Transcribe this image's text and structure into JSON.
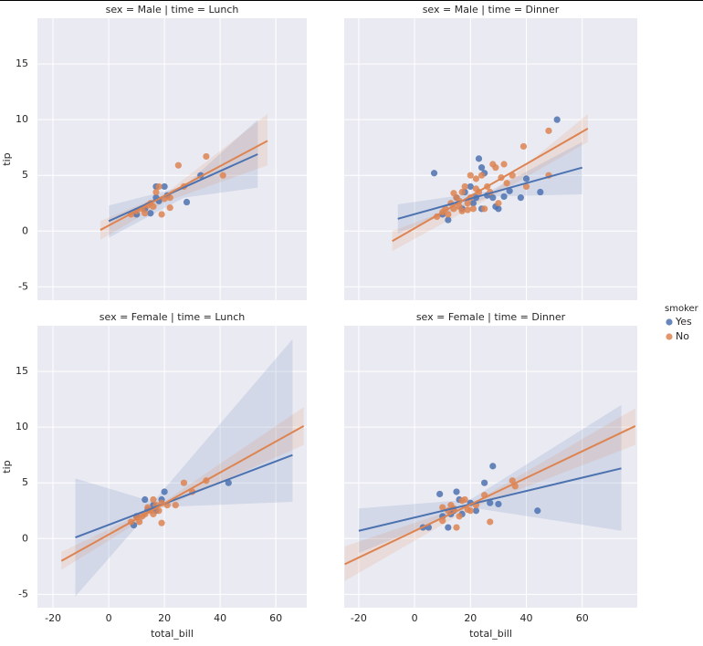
{
  "chart_data": [
    {
      "type": "scatter",
      "title": "sex = Male | time = Lunch",
      "y_label": "tip",
      "xlim": [
        -25.6,
        71.1
      ],
      "ylim": [
        -6.2,
        19.1
      ],
      "xticks": [
        -20,
        0,
        20,
        40,
        60
      ],
      "yticks": [
        -5,
        0,
        5,
        10,
        15
      ],
      "grid": true,
      "series": [
        {
          "name": "Yes",
          "color": "#4c72b0",
          "x": [
            17,
            20,
            17,
            15,
            28,
            33,
            18,
            21,
            10,
            13
          ],
          "values": [
            4,
            4,
            3,
            1.6,
            2.6,
            5,
            2.7,
            3.2,
            1.5,
            2
          ],
          "fit": {
            "x": [
              0,
              53.5
            ],
            "values": [
              0.9,
              6.9
            ]
          },
          "band": {
            "x": [
              0,
              27,
              53.5
            ],
            "lower": [
              -0.6,
              3.0,
              3.9
            ],
            "upper": [
              2.3,
              4.0,
              10
            ]
          }
        },
        {
          "name": "No",
          "color": "#dd8452",
          "x": [
            8,
            10,
            12,
            14,
            15,
            16,
            17,
            19,
            20,
            22,
            22,
            25,
            27,
            35,
            41,
            13,
            18
          ],
          "values": [
            1.5,
            1.8,
            2,
            2.3,
            2.5,
            2.2,
            3.5,
            1.5,
            2.9,
            3,
            2.1,
            5.9,
            4,
            6.7,
            5,
            1.6,
            4
          ],
          "fit": {
            "x": [
              -3,
              57
            ],
            "values": [
              0.1,
              8.1
            ]
          },
          "band": {
            "x": [
              -3,
              20,
              57
            ],
            "lower": [
              -0.8,
              2.6,
              5.9
            ],
            "upper": [
              0.9,
              3.3,
              10.5
            ]
          }
        }
      ]
    },
    {
      "type": "scatter",
      "title": "sex = Male | time = Dinner",
      "xlim": [
        -25.2,
        79.7
      ],
      "ylim": [
        -6.2,
        19.1
      ],
      "xticks": [
        -20,
        0,
        20,
        40,
        60
      ],
      "yticks": [
        -5,
        0,
        5,
        10,
        15
      ],
      "grid": true,
      "series": [
        {
          "name": "Yes",
          "color": "#4c72b0",
          "x": [
            7,
            12,
            15,
            17,
            18,
            20,
            21,
            22,
            23,
            24,
            25,
            26,
            28,
            29,
            30,
            32,
            34,
            38,
            40,
            45,
            51,
            24,
            10
          ],
          "values": [
            5.2,
            1,
            3,
            2,
            3.5,
            4,
            2.5,
            3,
            6.5,
            5.7,
            5.2,
            3.2,
            3,
            2.2,
            2,
            3.1,
            3.6,
            3,
            4.7,
            3.5,
            10,
            2,
            1.5
          ],
          "fit": {
            "x": [
              -6,
              60
            ],
            "values": [
              1.1,
              5.7
            ]
          },
          "band": {
            "x": [
              -6,
              27,
              60
            ],
            "lower": [
              -0.2,
              3.1,
              3.3
            ],
            "upper": [
              2.4,
              3.6,
              8.0
            ]
          }
        },
        {
          "name": "No",
          "color": "#dd8452",
          "x": [
            8,
            10,
            11,
            12,
            13,
            14,
            15,
            16,
            17,
            17,
            18,
            19,
            20,
            20,
            21,
            22,
            23,
            24,
            25,
            26,
            27,
            28,
            29,
            30,
            31,
            32,
            33,
            35,
            39,
            40,
            48,
            48,
            14,
            16,
            19,
            22
          ],
          "values": [
            1.3,
            1.7,
            2,
            1.5,
            2.5,
            2,
            3,
            2.2,
            3.5,
            1.8,
            4,
            2.5,
            3,
            5,
            2,
            4.7,
            3.5,
            5,
            2,
            4,
            3.5,
            6,
            5.7,
            2.5,
            4.8,
            6,
            4.3,
            5,
            7.6,
            4,
            9,
            5,
            3.4,
            2.7,
            1.9,
            3.8
          ],
          "fit": {
            "x": [
              -8,
              62
            ],
            "values": [
              -0.9,
              9.2
            ]
          },
          "band": {
            "x": [
              -8,
              27,
              62
            ],
            "lower": [
              -1.8,
              3.0,
              8.0
            ],
            "upper": [
              0,
              3.3,
              10.5
            ]
          }
        }
      ]
    },
    {
      "type": "scatter",
      "title": "sex = Female | time = Lunch",
      "y_label": "tip",
      "x_label": "total_bill",
      "xlim": [
        -25.6,
        71.1
      ],
      "ylim": [
        -6.2,
        19.1
      ],
      "xticks": [
        -20,
        0,
        20,
        40,
        60
      ],
      "yticks": [
        -5,
        0,
        5,
        10,
        15
      ],
      "grid": true,
      "series": [
        {
          "name": "Yes",
          "color": "#4c72b0",
          "x": [
            9,
            10,
            13,
            14,
            16,
            17,
            19,
            20,
            43
          ],
          "values": [
            1.2,
            2,
            3.5,
            2.6,
            3,
            2.5,
            3.5,
            4.2,
            5
          ],
          "fit": {
            "x": [
              -12,
              66
            ],
            "values": [
              0.1,
              7.5
            ]
          },
          "band": {
            "x": [
              -12,
              16,
              66
            ],
            "lower": [
              -5.2,
              2.8,
              3.3
            ],
            "upper": [
              5.4,
              3.3,
              17.9
            ]
          }
        },
        {
          "name": "No",
          "color": "#dd8452",
          "x": [
            8,
            10,
            11,
            12,
            13,
            14,
            15,
            16,
            17,
            18,
            19,
            21,
            24,
            27,
            30,
            35,
            16,
            19
          ],
          "values": [
            1.5,
            1.9,
            1.5,
            2,
            2.2,
            2.8,
            2.5,
            3.5,
            3,
            2.5,
            1.4,
            3,
            3,
            5,
            4.2,
            5.2,
            2.2,
            3.2
          ],
          "fit": {
            "x": [
              -17,
              70
            ],
            "values": [
              -2,
              10.1
            ]
          },
          "band": {
            "x": [
              -17,
              18,
              70
            ],
            "lower": [
              -2.8,
              2.6,
              8.4
            ],
            "upper": [
              -1.2,
              3.0,
              11.8
            ]
          }
        }
      ]
    },
    {
      "type": "scatter",
      "title": "sex = Female | time = Dinner",
      "x_label": "total_bill",
      "xlim": [
        -25.2,
        79.7
      ],
      "ylim": [
        -6.2,
        19.1
      ],
      "xticks": [
        -20,
        0,
        20,
        40,
        60
      ],
      "yticks": [
        -5,
        0,
        5,
        10,
        15
      ],
      "grid": true,
      "series": [
        {
          "name": "Yes",
          "color": "#4c72b0",
          "x": [
            3,
            5,
            9,
            10,
            12,
            13,
            14,
            15,
            16,
            17,
            20,
            22,
            25,
            27,
            28,
            30,
            44
          ],
          "values": [
            1,
            1,
            4,
            2,
            1,
            2.2,
            2.5,
            4.2,
            3.5,
            2.2,
            3.2,
            2.5,
            5,
            3.2,
            6.5,
            3.1,
            2.5
          ],
          "fit": {
            "x": [
              -20,
              74
            ],
            "values": [
              0.7,
              6.3
            ]
          },
          "band": {
            "x": [
              -20,
              20,
              74
            ],
            "lower": [
              -1.3,
              2.8,
              0.7
            ],
            "upper": [
              2.7,
              3.5,
              12
            ]
          }
        },
        {
          "name": "No",
          "color": "#dd8452",
          "x": [
            10,
            12,
            14,
            15,
            16,
            17,
            18,
            19,
            20,
            22,
            25,
            27,
            35,
            36,
            10,
            13
          ],
          "values": [
            1.6,
            2.5,
            2.7,
            1,
            2,
            3.4,
            3.5,
            2.6,
            2.5,
            3,
            3.9,
            1.5,
            5.2,
            4.7,
            2.8,
            3
          ],
          "fit": {
            "x": [
              -25,
              79
            ],
            "values": [
              -2.3,
              10.1
            ]
          },
          "band": {
            "x": [
              -25,
              20,
              79
            ],
            "lower": [
              -3.8,
              2.7,
              8.4
            ],
            "upper": [
              -0.7,
              3.1,
              11.7
            ]
          }
        }
      ]
    }
  ],
  "legend": {
    "title": "smoker"
  }
}
